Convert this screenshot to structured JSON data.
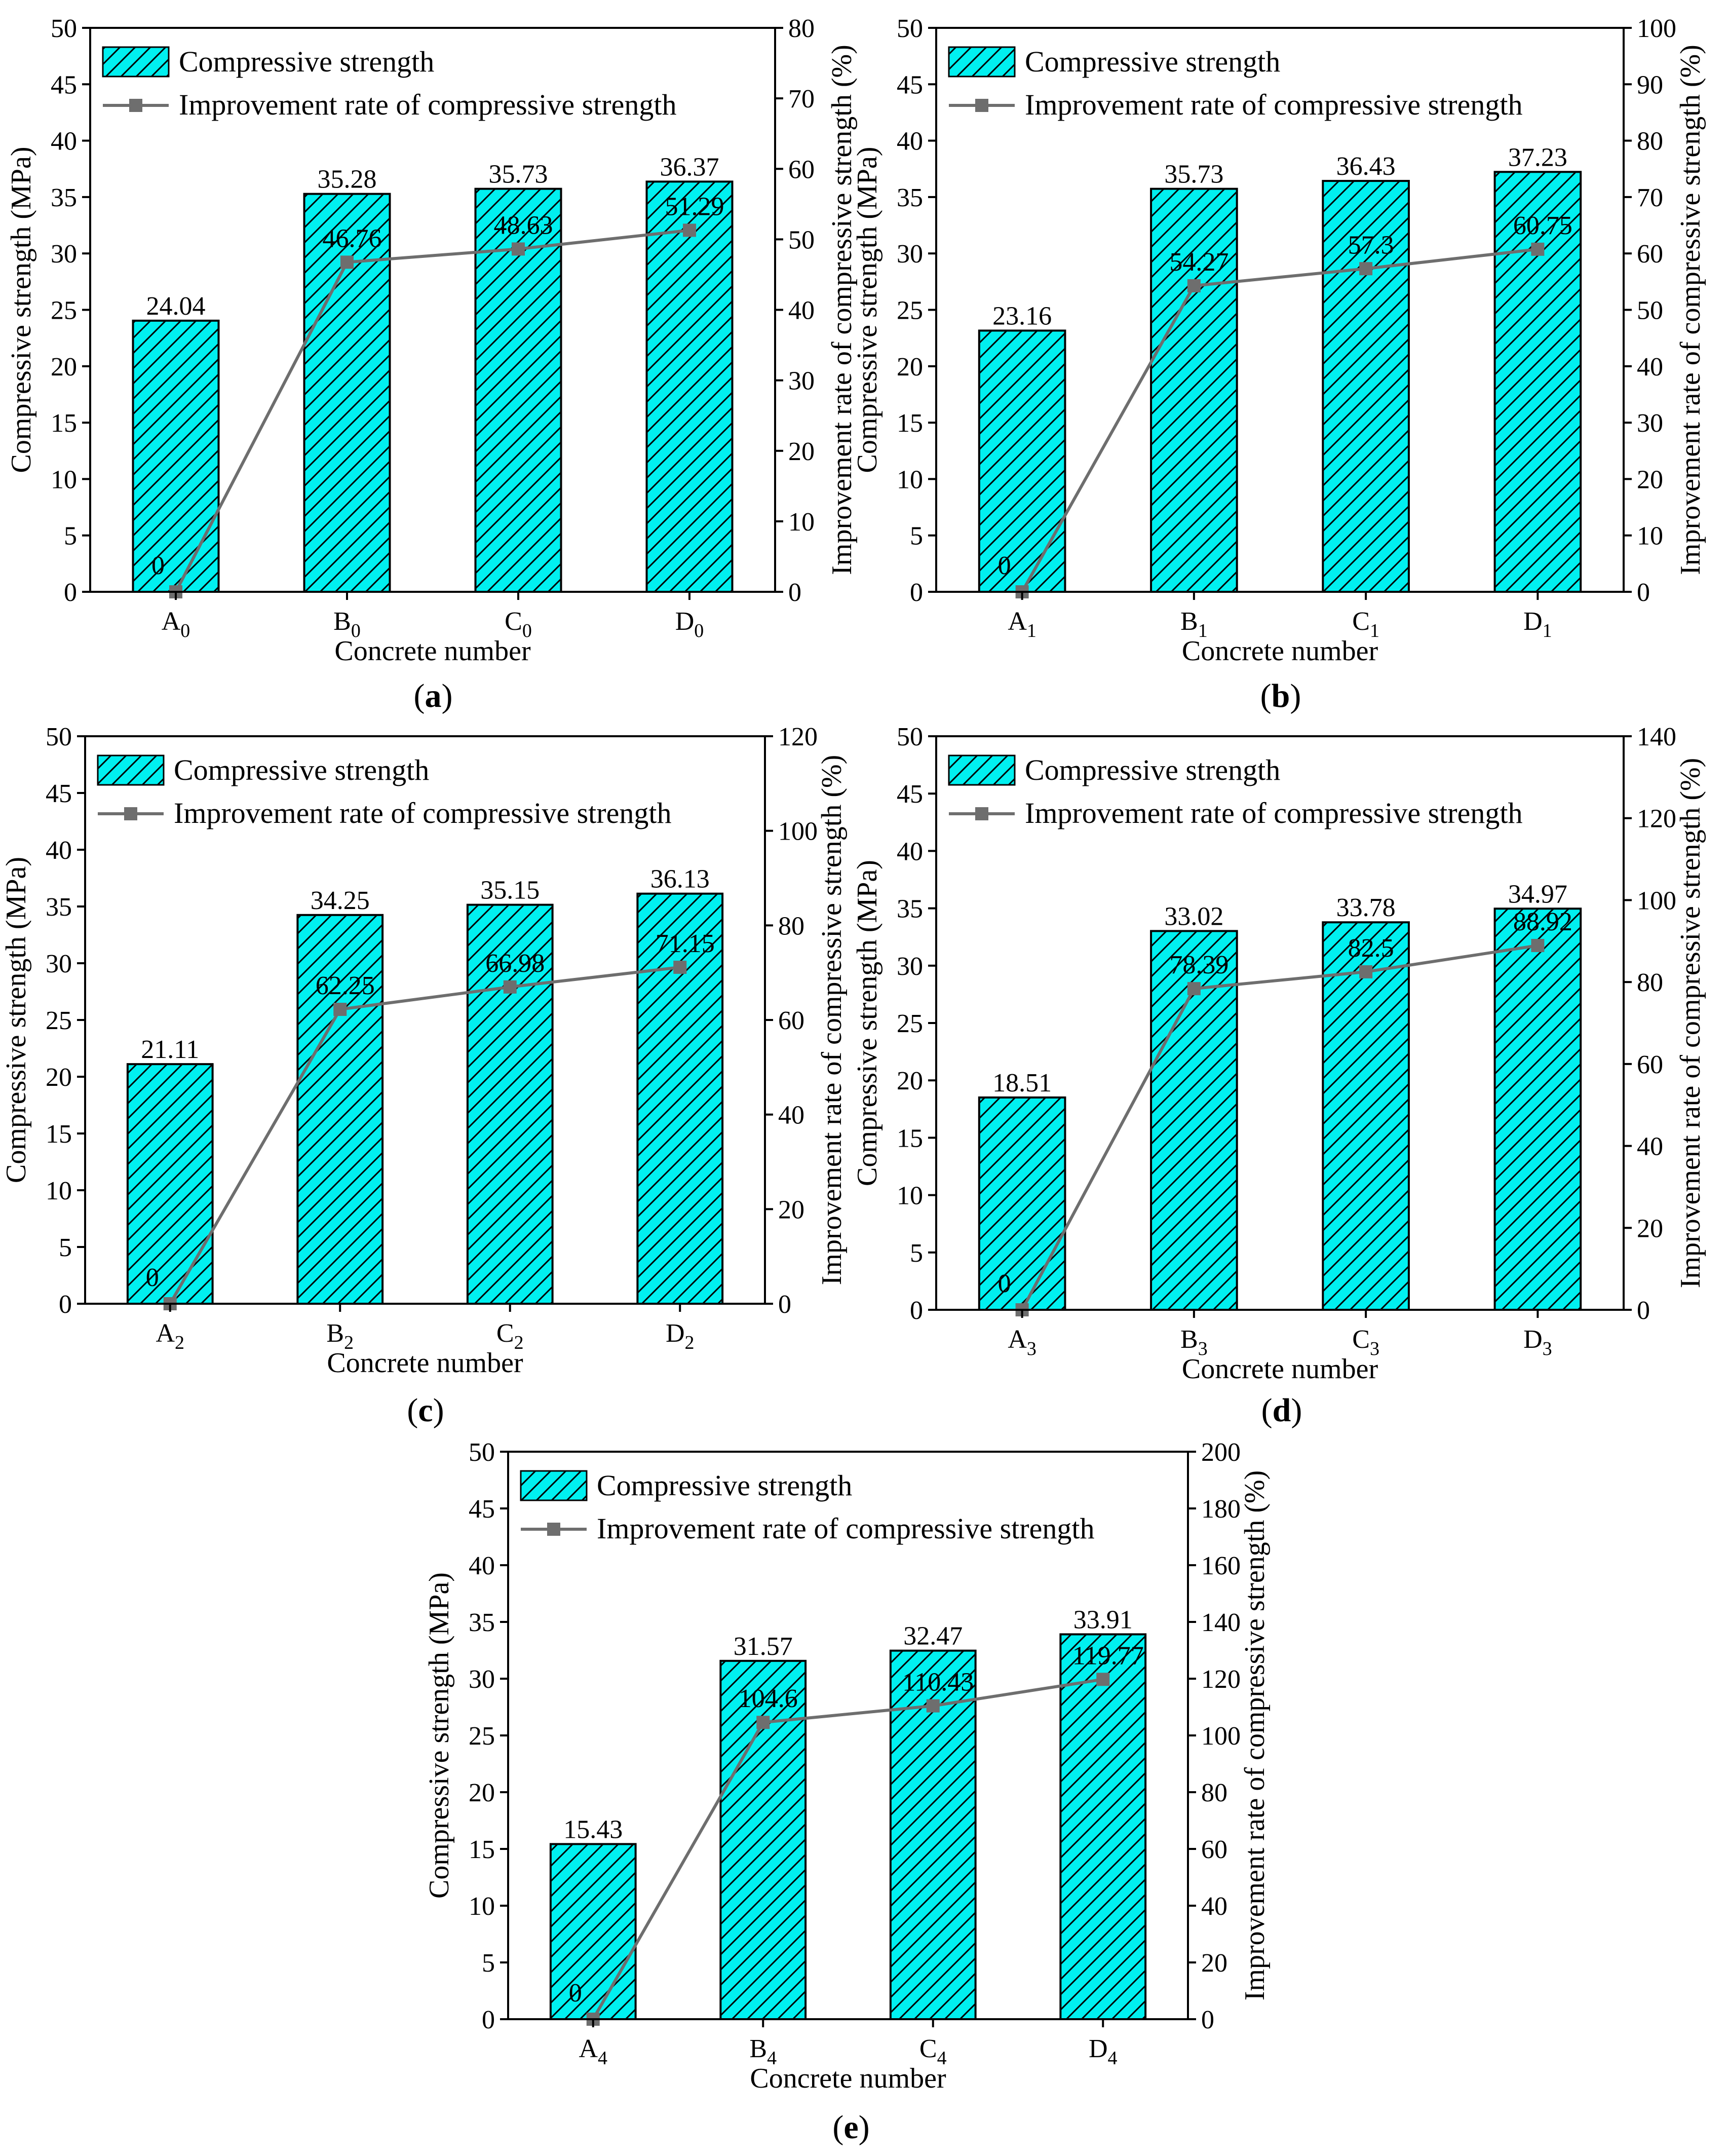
{
  "figure": {
    "legend": {
      "bar_label": "Compressive strength",
      "line_label": "Improvement rate of compressive strength"
    },
    "xlabel": "Concrete number",
    "ylabel_left": "Compressive strength (MPa)",
    "ylabel_right": "Improvement rate of compressive strength (%)",
    "colors": {
      "bar_fill": "#00f0f0",
      "bar_hatch": "#000000",
      "line": "#6e6e6e",
      "marker": "#6e6e6e"
    }
  },
  "chart_data": [
    {
      "type": "bar+line",
      "caption": "a",
      "categories": [
        {
          "base": "A",
          "sub": "0"
        },
        {
          "base": "B",
          "sub": "0"
        },
        {
          "base": "C",
          "sub": "0"
        },
        {
          "base": "D",
          "sub": "0"
        }
      ],
      "bar_values": [
        24.04,
        35.28,
        35.73,
        36.37
      ],
      "bar_labels": [
        "24.04",
        "35.28",
        "35.73",
        "36.37"
      ],
      "line_values": [
        0,
        46.76,
        48.63,
        51.29
      ],
      "line_labels": [
        "0",
        "46.76",
        "48.63",
        "51.29"
      ],
      "ylim_left": [
        0,
        50
      ],
      "yticks_left": [
        0,
        5,
        10,
        15,
        20,
        25,
        30,
        35,
        40,
        45,
        50
      ],
      "ylim_right": [
        0,
        80
      ],
      "yticks_right": [
        0,
        10,
        20,
        30,
        40,
        50,
        60,
        70,
        80
      ]
    },
    {
      "type": "bar+line",
      "caption": "b",
      "categories": [
        {
          "base": "A",
          "sub": "1"
        },
        {
          "base": "B",
          "sub": "1"
        },
        {
          "base": "C",
          "sub": "1"
        },
        {
          "base": "D",
          "sub": "1"
        }
      ],
      "bar_values": [
        23.16,
        35.73,
        36.43,
        37.23
      ],
      "bar_labels": [
        "23.16",
        "35.73",
        "36.43",
        "37.23"
      ],
      "line_values": [
        0,
        54.27,
        57.3,
        60.75
      ],
      "line_labels": [
        "0",
        "54.27",
        "57.3",
        "60.75"
      ],
      "ylim_left": [
        0,
        50
      ],
      "yticks_left": [
        0,
        5,
        10,
        15,
        20,
        25,
        30,
        35,
        40,
        45,
        50
      ],
      "ylim_right": [
        0,
        100
      ],
      "yticks_right": [
        0,
        10,
        20,
        30,
        40,
        50,
        60,
        70,
        80,
        90,
        100
      ]
    },
    {
      "type": "bar+line",
      "caption": "c",
      "categories": [
        {
          "base": "A",
          "sub": "2"
        },
        {
          "base": "B",
          "sub": "2"
        },
        {
          "base": "C",
          "sub": "2"
        },
        {
          "base": "D",
          "sub": "2"
        }
      ],
      "bar_values": [
        21.11,
        34.25,
        35.15,
        36.13
      ],
      "bar_labels": [
        "21.11",
        "34.25",
        "35.15",
        "36.13"
      ],
      "line_values": [
        0,
        62.25,
        66.98,
        71.15
      ],
      "line_labels": [
        "0",
        "62.25",
        "66.98",
        "71.15"
      ],
      "ylim_left": [
        0,
        50
      ],
      "yticks_left": [
        0,
        5,
        10,
        15,
        20,
        25,
        30,
        35,
        40,
        45,
        50
      ],
      "ylim_right": [
        0,
        120
      ],
      "yticks_right": [
        0,
        20,
        40,
        60,
        80,
        100,
        120
      ]
    },
    {
      "type": "bar+line",
      "caption": "d",
      "categories": [
        {
          "base": "A",
          "sub": "3"
        },
        {
          "base": "B",
          "sub": "3"
        },
        {
          "base": "C",
          "sub": "3"
        },
        {
          "base": "D",
          "sub": "3"
        }
      ],
      "bar_values": [
        18.51,
        33.02,
        33.78,
        34.97
      ],
      "bar_labels": [
        "18.51",
        "33.02",
        "33.78",
        "34.97"
      ],
      "line_values": [
        0,
        78.39,
        82.5,
        88.92
      ],
      "line_labels": [
        "0",
        "78.39",
        "82.5",
        "88.92"
      ],
      "ylim_left": [
        0,
        50
      ],
      "yticks_left": [
        0,
        5,
        10,
        15,
        20,
        25,
        30,
        35,
        40,
        45,
        50
      ],
      "ylim_right": [
        0,
        140
      ],
      "yticks_right": [
        0,
        20,
        40,
        60,
        80,
        100,
        120,
        140
      ]
    },
    {
      "type": "bar+line",
      "caption": "e",
      "categories": [
        {
          "base": "A",
          "sub": "4"
        },
        {
          "base": "B",
          "sub": "4"
        },
        {
          "base": "C",
          "sub": "4"
        },
        {
          "base": "D",
          "sub": "4"
        }
      ],
      "bar_values": [
        15.43,
        31.57,
        32.47,
        33.91
      ],
      "bar_labels": [
        "15.43",
        "31.57",
        "32.47",
        "33.91"
      ],
      "line_values": [
        0,
        104.6,
        110.43,
        119.77
      ],
      "line_labels": [
        "0",
        "104.6",
        "110.43",
        "119.77"
      ],
      "ylim_left": [
        0,
        50
      ],
      "yticks_left": [
        0,
        5,
        10,
        15,
        20,
        25,
        30,
        35,
        40,
        45,
        50
      ],
      "ylim_right": [
        0,
        200
      ],
      "yticks_right": [
        0,
        20,
        40,
        60,
        80,
        100,
        120,
        140,
        160,
        180,
        200
      ]
    }
  ]
}
